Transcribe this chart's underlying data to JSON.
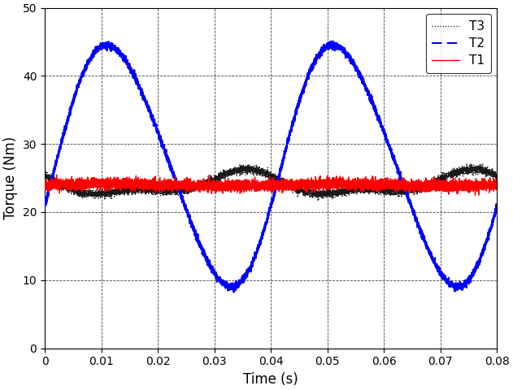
{
  "title": "",
  "xlabel": "Time (s)",
  "ylabel": "Torque (Nm)",
  "xlim": [
    0,
    0.08
  ],
  "ylim": [
    0,
    50
  ],
  "xticks": [
    0,
    0.01,
    0.02,
    0.03,
    0.04,
    0.05,
    0.06,
    0.07,
    0.08
  ],
  "yticks": [
    0,
    10,
    20,
    30,
    40,
    50
  ],
  "T1_color": "#ff0000",
  "T2_color": "#0000ff",
  "T3_color": "#1a1a1a",
  "T1_lw": 1.0,
  "T2_lw": 1.5,
  "T3_lw": 0.9,
  "legend_loc": "upper right",
  "figsize": [
    6.31,
    4.8
  ],
  "dpi": 100,
  "xtick_labels": [
    "0",
    "0.01",
    "0.02",
    "0.03",
    "0.04",
    "0.05",
    "0.06",
    "0.07",
    "0.08"
  ]
}
